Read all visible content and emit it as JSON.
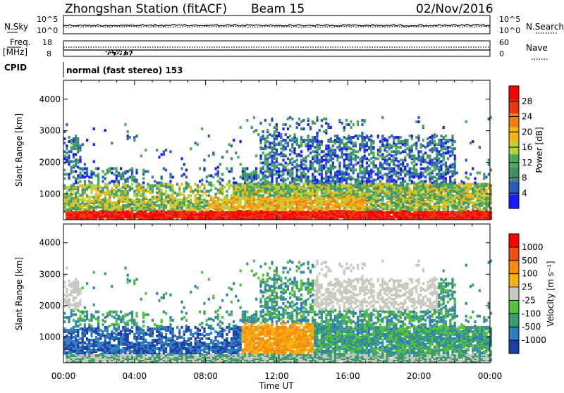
{
  "header": {
    "station": "Zhongshan Station (fitACF)",
    "beam": "Beam 15",
    "date": "02/Nov/2016"
  },
  "chart_data": [
    {
      "type": "line",
      "panel": "noise",
      "ylabel_left": "N.Sky",
      "ylabel_right": "N.Search",
      "left_ticks": [
        "10^5",
        "10^0"
      ],
      "right_ticks": [
        "10^5",
        "10^0"
      ],
      "log_scale": true,
      "series": [
        {
          "name": "N.Sky",
          "style": "solid"
        },
        {
          "name": "N.Search",
          "style": "dotted"
        }
      ]
    },
    {
      "type": "line",
      "panel": "frequency",
      "ylabel_left": "Freq. [MHz]",
      "ylabel_right": "Nave",
      "left_ticks": [
        "18",
        "8"
      ],
      "right_ticks": [
        "60",
        "0"
      ],
      "series": [
        {
          "name": "Freq.",
          "style": "solid"
        },
        {
          "name": "Nave",
          "style": "dotted"
        }
      ]
    },
    {
      "type": "table",
      "panel": "cpid",
      "label": "CPID",
      "text": "normal (fast stereo) 153"
    },
    {
      "type": "heatmap",
      "panel": "power",
      "ylabel": "Slant Range [km]",
      "xlabel": "Time UT",
      "x_ticks": [
        "00:00",
        "04:00",
        "08:00",
        "12:00",
        "16:00",
        "20:00",
        "00:00"
      ],
      "x_range_hours": [
        0,
        24
      ],
      "y_ticks": [
        1000,
        2000,
        3000,
        4000
      ],
      "y_range": [
        180,
        4600
      ],
      "colorbar": {
        "label": "Power [dB]",
        "ticks": [
          "4",
          "8",
          "12",
          "16",
          "20",
          "24",
          "28"
        ],
        "range": [
          0,
          30
        ],
        "colors": [
          "#1a1aff",
          "#2a5cc0",
          "#3f8f6a",
          "#4ca85a",
          "#b7d23a",
          "#f2b311",
          "#f57d0e",
          "#e8380f",
          "#ff0000"
        ]
      }
    },
    {
      "type": "heatmap",
      "panel": "velocity",
      "ylabel": "Slant Range [km]",
      "xlabel": "Time UT",
      "x_ticks": [
        "00:00",
        "04:00",
        "08:00",
        "12:00",
        "16:00",
        "20:00",
        "00:00"
      ],
      "x_range_hours": [
        0,
        24
      ],
      "y_ticks": [
        1000,
        2000,
        3000,
        4000
      ],
      "y_range": [
        180,
        4600
      ],
      "colorbar": {
        "label": "Velocity [m s⁻¹]",
        "ticks": [
          "1000",
          "500",
          "100",
          "25",
          "-25",
          "-100",
          "-500",
          "-1000"
        ],
        "colors": [
          "#1f3fa8",
          "#2b7fbf",
          "#3e9a6c",
          "#52c13c",
          "#c8c8c0",
          "#f5b10e",
          "#f58a0e",
          "#f0500f",
          "#ff0000"
        ]
      }
    }
  ]
}
